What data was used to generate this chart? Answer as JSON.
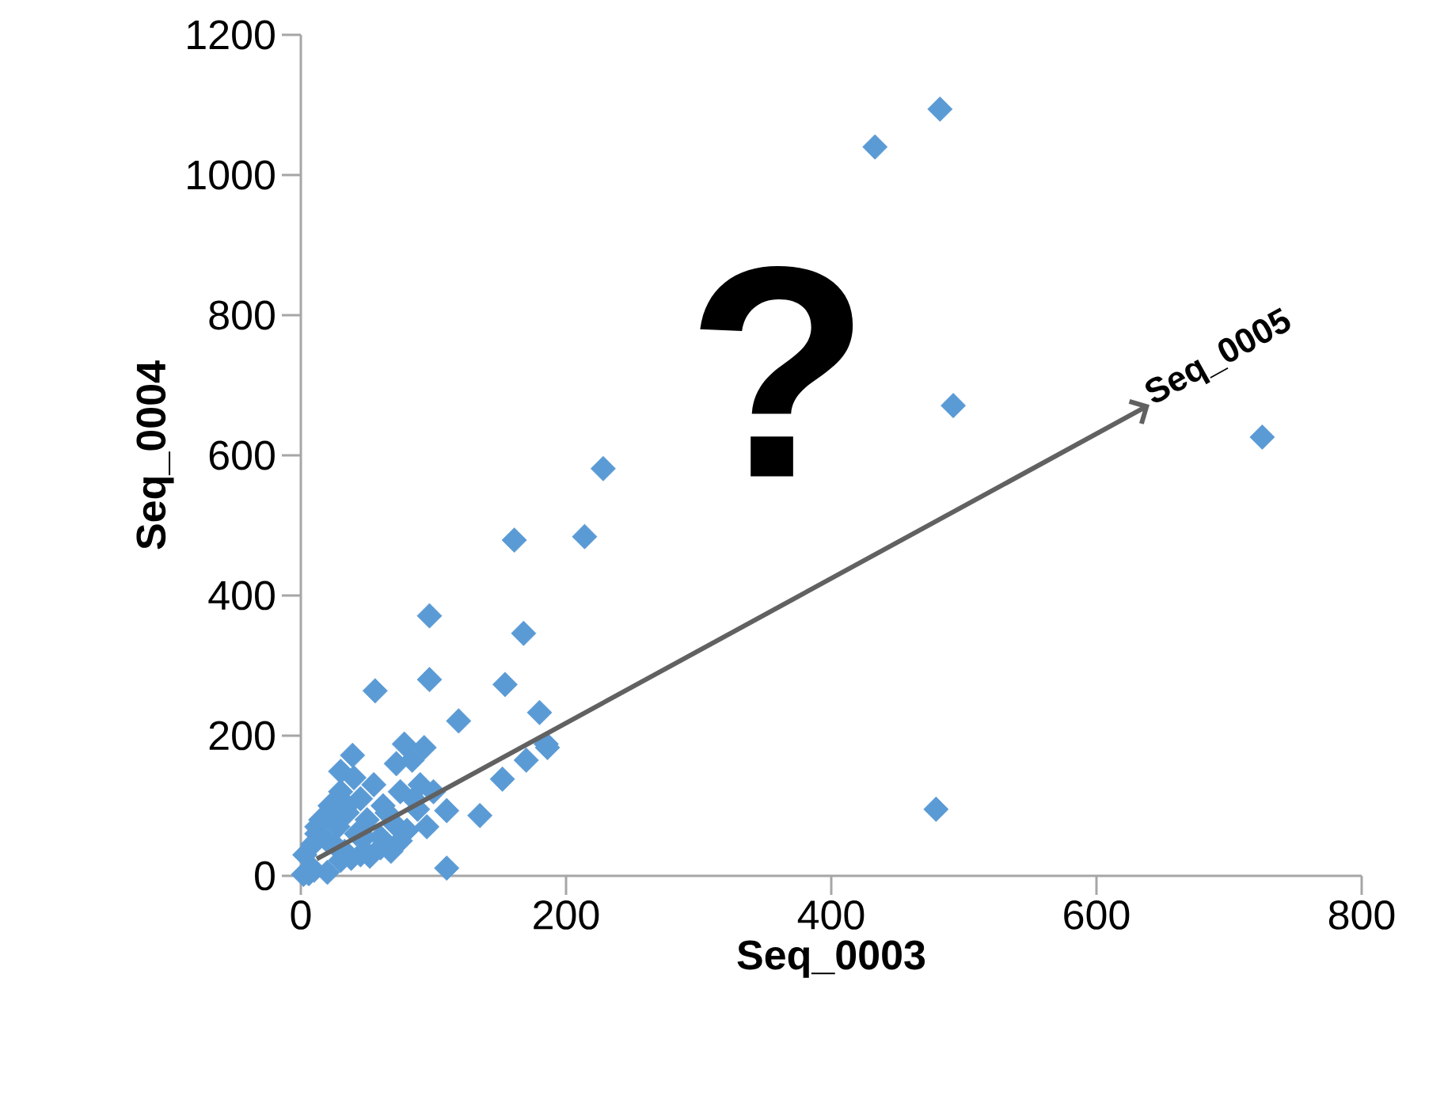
{
  "chart_data": {
    "type": "scatter",
    "xlabel": "Seq_0003",
    "ylabel": "Seq_0004",
    "x": [
      482,
      433,
      492,
      725,
      479,
      228,
      214,
      161,
      97,
      168,
      56,
      97,
      154,
      180,
      119,
      186,
      39,
      78,
      93,
      30,
      110,
      135,
      152,
      170,
      110,
      84,
      185,
      2,
      12,
      15,
      20,
      22,
      25,
      28,
      30,
      33,
      35,
      40,
      42,
      45,
      50,
      55,
      60,
      62,
      65,
      70,
      72,
      75,
      80,
      85,
      88,
      90,
      95,
      100,
      6,
      10,
      20,
      30,
      38,
      45,
      52,
      60,
      68,
      75,
      3,
      9,
      12,
      24,
      35,
      48
    ],
    "values": [
      1094,
      1040,
      671,
      626,
      95,
      581,
      484,
      479,
      371,
      346,
      264,
      280,
      273,
      233,
      221,
      183,
      172,
      188,
      183,
      149,
      93,
      86,
      138,
      165,
      11,
      165,
      188,
      2,
      60,
      80,
      50,
      100,
      45,
      70,
      120,
      35,
      90,
      140,
      60,
      110,
      80,
      130,
      55,
      100,
      90,
      75,
      160,
      120,
      65,
      110,
      95,
      130,
      70,
      120,
      3,
      8,
      5,
      22,
      25,
      30,
      28,
      40,
      35,
      50,
      30,
      45,
      70,
      85,
      100,
      55
    ],
    "color": "#5b9bd5",
    "marker": "diamond",
    "xlim": [
      0,
      800
    ],
    "ylim": [
      0,
      1200
    ],
    "xticks": [
      0,
      200,
      400,
      600,
      800
    ],
    "yticks": [
      0,
      200,
      400,
      600,
      800,
      1000,
      1200
    ],
    "annotations": [
      "?",
      "Seq_0005"
    ]
  }
}
